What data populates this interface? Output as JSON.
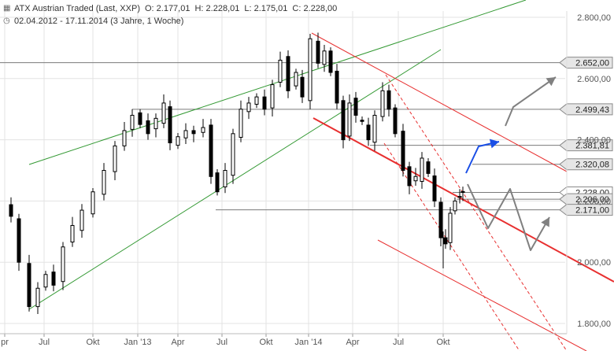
{
  "header": {
    "title": "ATX Austrian Traded (Last, XXP)",
    "open": "O: 2.177,01",
    "high": "H: 2.228,01",
    "low": "L: 2.175,01",
    "close": "C: 2.228,00",
    "range": "02.04.2012 - 17.11.2014 (3 Jahre, 1 Woche)",
    "icons": [
      "chart-settings-icon",
      "clock-icon"
    ]
  },
  "chart_data": {
    "type": "candlestick",
    "x_ticks": [
      "pr",
      "Jul",
      "Okt",
      "Jan '13",
      "Apr",
      "Jul",
      "Okt",
      "Jan '14",
      "Apr",
      "Jul",
      "Okt"
    ],
    "y_ticks": [
      "2.800,00",
      "2.600,00",
      "2.400,00",
      "2.200,00",
      "2.000,00",
      "1.800,00"
    ],
    "ylim": [
      1750,
      2850
    ],
    "level_labels": [
      {
        "value": 2652,
        "label": "2.652,00"
      },
      {
        "value": 2499.43,
        "label": "2.499,43"
      },
      {
        "value": 2381.81,
        "label": "2.381,81"
      },
      {
        "value": 2320.08,
        "label": "2.320,08"
      },
      {
        "value": 2228,
        "label": "2.228,00",
        "current": true
      },
      {
        "value": 2206,
        "label": "2.206,00"
      },
      {
        "value": 2171,
        "label": "2.171,00"
      }
    ],
    "colors": {
      "up_channel": "#339933",
      "down_channel": "#e83030",
      "projection_gray": "#808080",
      "projection_blue": "#1a4fe6",
      "candles": "#000000"
    }
  }
}
